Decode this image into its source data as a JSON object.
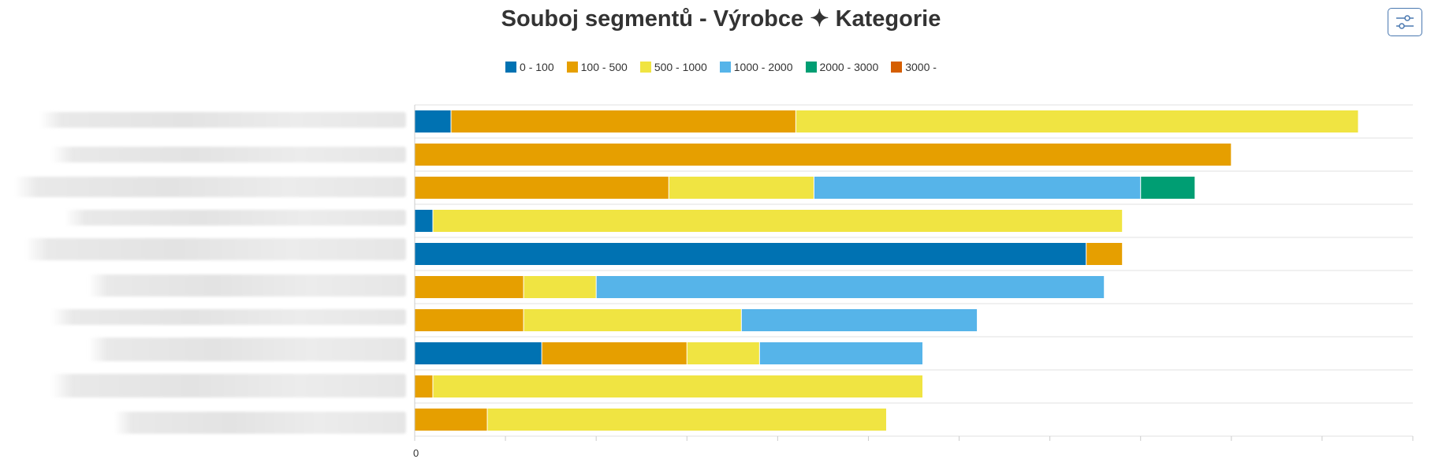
{
  "chart_data": {
    "type": "bar",
    "orientation": "horizontal",
    "stacked": true,
    "title": "Souboj segmentů - Výrobce ✦ Kategorie",
    "x_tick_labels": [
      "0"
    ],
    "legend_position": "top",
    "grid": true,
    "xlim": [
      0,
      110
    ],
    "categories": [
      "",
      "",
      "",
      "",
      "",
      "",
      "",
      "",
      "",
      ""
    ],
    "series": [
      {
        "name": "0 - 100",
        "color": "#0072b2",
        "values": [
          4,
          0,
          0,
          2,
          74,
          0,
          0,
          14,
          0,
          0
        ]
      },
      {
        "name": "100 - 500",
        "color": "#e69f00",
        "values": [
          38,
          90,
          28,
          0,
          4,
          12,
          12,
          16,
          2,
          8
        ]
      },
      {
        "name": "500 - 1000",
        "color": "#f0e442",
        "values": [
          62,
          0,
          16,
          76,
          0,
          8,
          24,
          8,
          54,
          44
        ]
      },
      {
        "name": "1000 - 2000",
        "color": "#56b4e9",
        "values": [
          0,
          0,
          36,
          0,
          0,
          56,
          26,
          18,
          0,
          0
        ]
      },
      {
        "name": "2000 - 3000",
        "color": "#009e73",
        "values": [
          0,
          0,
          6,
          0,
          0,
          0,
          0,
          0,
          0,
          0
        ]
      },
      {
        "name": "3000 -",
        "color": "#d55e00",
        "values": [
          0,
          0,
          0,
          0,
          0,
          0,
          0,
          0,
          0,
          0
        ]
      }
    ]
  },
  "toolbar": {
    "settings_icon": "sliders-icon"
  }
}
